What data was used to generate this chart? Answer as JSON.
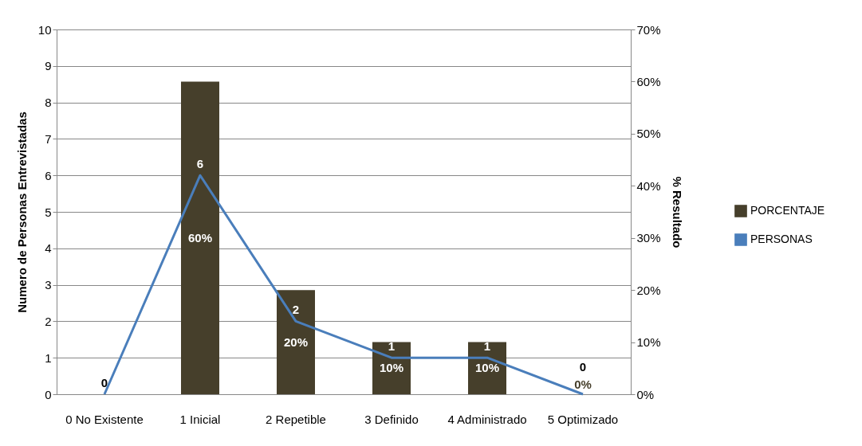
{
  "chart_data": {
    "type": "bar",
    "categories": [
      "0 No Existente",
      "1 Inicial",
      "2 Repetible",
      "3 Definido",
      "4 Administrado",
      "5 Optimizado"
    ],
    "series": [
      {
        "name": "PORCENTAJE",
        "axis": "y2",
        "color": "#463f2b",
        "values": [
          0,
          60,
          20,
          10,
          10,
          0
        ],
        "value_labels": [
          null,
          "60%",
          "20%",
          "10%",
          "10%",
          "0%"
        ]
      },
      {
        "name": "PERSONAS",
        "type": "line",
        "color": "#4a7ebb",
        "values": [
          0,
          6,
          2,
          1,
          1,
          0
        ],
        "value_labels": [
          "0",
          "6",
          "2",
          "1",
          "1",
          "0"
        ]
      }
    ],
    "ylabel": "Numero de Personas Entrevistadas",
    "y2label": "% Resultado",
    "ylim": [
      0,
      10
    ],
    "yticks": [
      0,
      1,
      2,
      3,
      4,
      5,
      6,
      7,
      8,
      9,
      10
    ],
    "y2lim": [
      0,
      70
    ],
    "y2ticks": [
      {
        "value": 0,
        "label": "0%"
      },
      {
        "value": 10,
        "label": "10%"
      },
      {
        "value": 20,
        "label": "20%"
      },
      {
        "value": 30,
        "label": "30%"
      },
      {
        "value": 40,
        "label": "40%"
      },
      {
        "value": 50,
        "label": "50%"
      },
      {
        "value": 60,
        "label": "60%"
      },
      {
        "value": 70,
        "label": "70%"
      }
    ],
    "grid": "y",
    "legend": "right"
  }
}
